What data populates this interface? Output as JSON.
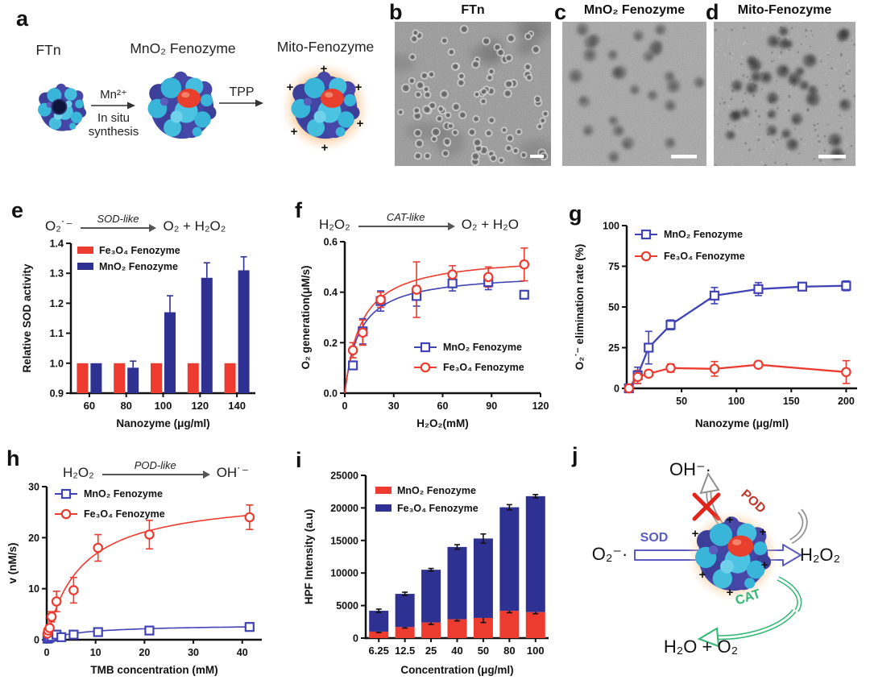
{
  "colors": {
    "red": "#ee3b30",
    "navy": "#2e3192",
    "line_blue": "#3f43b5",
    "green": "#2eb872",
    "sod_blue": "#5b5bc0",
    "pod_red": "#c0392b",
    "glow_orange": "#f59a4d",
    "axis": "#111111"
  },
  "panels": {
    "a": {
      "letter": "a",
      "label_ftn": "FTn",
      "label_mno2": "MnO₂ Fenozyme",
      "label_mito": "Mito-Fenozyme",
      "arrow1_top": "Mn²⁺",
      "arrow1_mid": "In situ",
      "arrow1_bot": "synthesis",
      "arrow2_top": "TPP",
      "plus": "+"
    },
    "b": {
      "letter": "b",
      "title": "FTn"
    },
    "c": {
      "letter": "c",
      "title": "MnO₂ Fenozyme"
    },
    "d": {
      "letter": "d",
      "title": "Mito-Fenozyme"
    },
    "e": {
      "letter": "e",
      "reaction": {
        "substrate": "O₂˙⁻",
        "enzyme": "SOD-like",
        "product": "O₂ + H₂O₂"
      }
    },
    "f": {
      "letter": "f",
      "reaction": {
        "substrate": "H₂O₂",
        "enzyme": "CAT-like",
        "product": "O₂ + H₂O"
      }
    },
    "g": {
      "letter": "g"
    },
    "h": {
      "letter": "h",
      "reaction": {
        "substrate": "H₂O₂",
        "enzyme": "POD-like",
        "product": "OH˙⁻"
      }
    },
    "i": {
      "letter": "i"
    },
    "j": {
      "letter": "j",
      "labels": {
        "oh": "OH⁻·",
        "o2": "O₂⁻·",
        "h2o2": "H₂O₂",
        "h2o_o2": "H₂O + O₂",
        "sod": "SOD",
        "pod": "POD",
        "cat": "CAT",
        "plus": "+"
      }
    }
  },
  "chart_data": [
    {
      "panel": "e",
      "type": "bar",
      "categories": [
        "60",
        "80",
        "100",
        "120",
        "140"
      ],
      "xlabel": "Nanozyme (μg/ml)",
      "ylabel": "Relative SOD activity",
      "ylim": [
        0.9,
        1.4
      ],
      "yticks": [
        "0.9",
        "1.0",
        "1.1",
        "1.2",
        "1.3",
        "1.4"
      ],
      "legend_pos": "top-left-inside",
      "grid": false,
      "series": [
        {
          "name": "Fe₃O₄ Fenozyme",
          "color": "#ee3b30",
          "values": [
            1.0,
            1.0,
            1.0,
            1.0,
            1.0
          ],
          "errors": [
            0,
            0,
            0,
            0,
            0
          ]
        },
        {
          "name": "MnO₂ Fenozyme",
          "color": "#2e3192",
          "values": [
            1.0,
            0.985,
            1.17,
            1.285,
            1.31
          ],
          "errors": [
            0,
            0.022,
            0.055,
            0.05,
            0.045
          ]
        }
      ]
    },
    {
      "panel": "f",
      "type": "scatter",
      "xlabel": "H₂O₂(mM)",
      "ylabel": "O₂ generation(μM/s)",
      "xlim": [
        0,
        120
      ],
      "xticks": [
        "0",
        "30",
        "60",
        "90",
        "120"
      ],
      "ylim": [
        0,
        0.6
      ],
      "yticks": [
        "0.0",
        "0.2",
        "0.4",
        "0.6"
      ],
      "legend_pos": "bottom-right-inside",
      "grid": false,
      "series": [
        {
          "name": "MnO₂ Fenozyme",
          "marker": "square",
          "color": "#3f43b5",
          "x": [
            5,
            11,
            22,
            44,
            66,
            88,
            110
          ],
          "y": [
            0.11,
            0.245,
            0.365,
            0.385,
            0.435,
            0.44,
            0.39
          ],
          "err": [
            0.01,
            0.05,
            0.04,
            0.04,
            0.03,
            0.03,
            0.01
          ],
          "fit": {
            "vmax": 0.48,
            "km": 9
          }
        },
        {
          "name": "Fe₃O₄ Fenozyme",
          "marker": "circle",
          "color": "#ee3b30",
          "x": [
            5,
            11,
            22,
            44,
            66,
            88,
            110
          ],
          "y": [
            0.17,
            0.24,
            0.37,
            0.41,
            0.47,
            0.46,
            0.51
          ],
          "err": [
            0.03,
            0.05,
            0.03,
            0.11,
            0.035,
            0.04,
            0.065
          ],
          "fit": {
            "vmax": 0.55,
            "km": 10
          }
        }
      ]
    },
    {
      "panel": "g",
      "type": "scatter",
      "xlabel": "Nanozyme (μg/ml)",
      "ylabel": "O₂˙⁻ elimination rate (%)",
      "xlim": [
        0,
        210
      ],
      "xticks": [
        "50",
        "100",
        "150",
        "200"
      ],
      "ylim": [
        0,
        100
      ],
      "yticks": [
        "0",
        "25",
        "50",
        "75",
        "100"
      ],
      "legend_pos": "top-left-inside",
      "grid": false,
      "series": [
        {
          "name": "MnO₂ Fenozyme",
          "marker": "square",
          "color": "#3f43b5",
          "connect": true,
          "x": [
            2,
            10,
            20,
            40,
            80,
            120,
            160,
            200
          ],
          "y": [
            0,
            8,
            25,
            39,
            57,
            61,
            62.5,
            63
          ],
          "err": [
            2,
            5,
            10,
            3,
            5,
            4,
            2,
            3
          ]
        },
        {
          "name": "Fe₃O₄ Fenozyme",
          "marker": "circle",
          "color": "#ee3b30",
          "connect": true,
          "x": [
            2,
            10,
            20,
            40,
            80,
            120,
            200
          ],
          "y": [
            0,
            7,
            9,
            12.5,
            12,
            14.5,
            10
          ],
          "err": [
            2,
            4,
            2,
            2.5,
            4.5,
            2,
            7
          ]
        }
      ]
    },
    {
      "panel": "h",
      "type": "scatter",
      "xlabel": "TMB concentration (mM)",
      "ylabel": "v (nM/s)",
      "xlim": [
        0,
        44
      ],
      "xticks": [
        "0",
        "10",
        "20",
        "30",
        "40"
      ],
      "ylim": [
        0,
        30
      ],
      "yticks": [
        "0",
        "10",
        "20",
        "30"
      ],
      "legend_pos": "top-left-inside",
      "grid": false,
      "series": [
        {
          "name": "MnO₂ Fenozyme",
          "marker": "square",
          "color": "#3f43b5",
          "x": [
            0.15,
            0.3,
            0.6,
            1,
            2,
            3,
            5.5,
            10.5,
            21,
            41.5
          ],
          "y": [
            0.2,
            0.3,
            0.4,
            0.6,
            1.0,
            0.5,
            1.0,
            1.5,
            1.8,
            2.5
          ],
          "err": [
            0,
            0,
            0,
            0,
            0.4,
            0.3,
            0.4,
            0.5,
            0.5,
            0.6
          ],
          "fit": {
            "vmax": 3.0,
            "km": 8
          }
        },
        {
          "name": "Fe₃O₄ Fenozyme",
          "marker": "circle",
          "color": "#ee3b30",
          "x": [
            0.15,
            0.3,
            0.6,
            1,
            2,
            5.5,
            10.5,
            21,
            41.5
          ],
          "y": [
            1.2,
            1.8,
            2.3,
            4.5,
            7.5,
            9.7,
            18,
            20.6,
            24
          ],
          "err": [
            0.3,
            0.4,
            0.5,
            1.0,
            2.0,
            2.5,
            2.6,
            2.8,
            2.4
          ],
          "fit": {
            "vmax": 28.5,
            "km": 7
          }
        }
      ]
    },
    {
      "panel": "i",
      "type": "stackedBar",
      "categories": [
        "6.25",
        "12.5",
        "25",
        "40",
        "50",
        "80",
        "100"
      ],
      "xlabel": "Concentration (μg/ml)",
      "ylabel": "HPF Intensity (a.u)",
      "ylim": [
        0,
        25000
      ],
      "yticks": [
        "0",
        "5000",
        "10000",
        "15000",
        "20000",
        "25000"
      ],
      "legend_pos": "top-left-inside",
      "grid": false,
      "series": [
        {
          "name": "MnO₂ Fenozyme",
          "color": "#ee3b30",
          "values": [
            1000,
            1700,
            2400,
            2900,
            3100,
            4200,
            4000
          ],
          "errors": [
            150,
            150,
            300,
            250,
            700,
            300,
            250
          ]
        },
        {
          "name": "Fe₃O₄ Fenozyme",
          "color": "#2e3192",
          "values": [
            3200,
            5100,
            8100,
            11100,
            12200,
            15900,
            17800
          ],
          "errors": [
            250,
            250,
            200,
            350,
            700,
            400,
            250
          ]
        }
      ]
    }
  ]
}
